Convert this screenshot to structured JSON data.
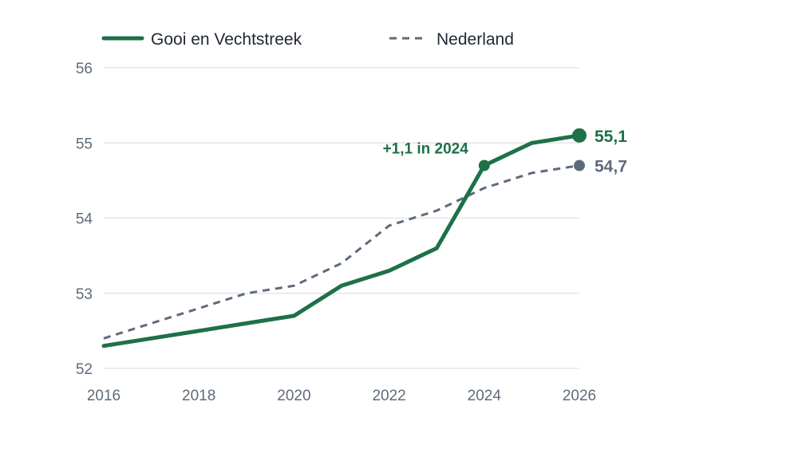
{
  "chart_data": {
    "type": "line",
    "x": [
      2016,
      2017,
      2018,
      2019,
      2020,
      2021,
      2022,
      2023,
      2024,
      2025,
      2026
    ],
    "series": [
      {
        "name": "Gooi en Vechtstreek",
        "color": "#1e7048",
        "style": "solid",
        "values": [
          52.3,
          52.4,
          52.5,
          52.6,
          52.7,
          53.1,
          53.3,
          53.6,
          54.7,
          55.0,
          55.1
        ],
        "end_label": "55,1"
      },
      {
        "name": "Nederland",
        "color": "#5d6b7b",
        "style": "dashed",
        "values": [
          52.4,
          52.6,
          52.8,
          53.0,
          53.1,
          53.4,
          53.9,
          54.1,
          54.4,
          54.6,
          54.7
        ],
        "end_label": "54,7"
      }
    ],
    "xticks": [
      2016,
      2018,
      2020,
      2022,
      2024,
      2026
    ],
    "yticks": [
      52,
      53,
      54,
      55,
      56
    ],
    "xlim": [
      2016,
      2026
    ],
    "ylim": [
      52,
      56
    ],
    "grid": "horizontal",
    "legend": "top-left",
    "annotation": {
      "text": "+1,1 in 2024",
      "x": 2024,
      "y": 54.7
    }
  }
}
